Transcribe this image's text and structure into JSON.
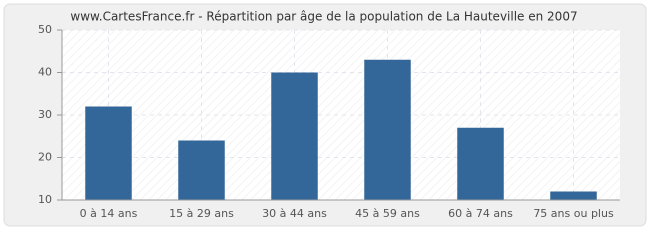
{
  "chart_data": {
    "type": "bar",
    "title": "www.CartesFrance.fr - Répartition par âge de la population de La Hauteville en 2007",
    "categories": [
      "0 à 14 ans",
      "15 à 29 ans",
      "30 à 44 ans",
      "45 à 59 ans",
      "60 à 74 ans",
      "75 ans ou plus"
    ],
    "values": [
      32,
      24,
      40,
      43,
      27,
      12
    ],
    "color": "#336699",
    "ylim": [
      10,
      50
    ],
    "yticks": [
      10,
      20,
      30,
      40,
      50
    ],
    "grid": true
  }
}
